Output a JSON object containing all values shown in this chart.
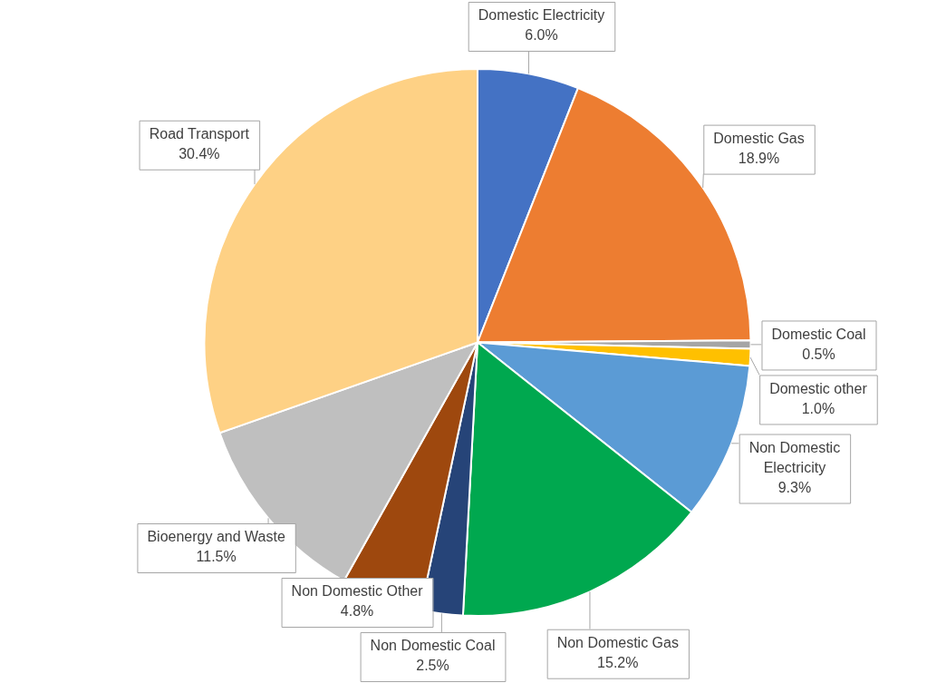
{
  "chart_data": {
    "type": "pie",
    "categories": [
      "Domestic Electricity",
      "Domestic Gas",
      "Domestic Coal",
      "Domestic other",
      "Non Domestic Electricity",
      "Non Domestic Gas",
      "Non Domestic Coal",
      "Non Domestic Other",
      "Bioenergy and Waste",
      "Road Transport"
    ],
    "values": [
      6.0,
      18.9,
      0.5,
      1.0,
      9.3,
      15.2,
      2.5,
      4.8,
      11.5,
      30.4
    ],
    "colors": [
      "#4472c4",
      "#ed7d31",
      "#a5a5a5",
      "#ffc000",
      "#5b9bd5",
      "#00a84f",
      "#264478",
      "#9e480e",
      "#bfbfbf",
      "#fed185"
    ],
    "value_labels": [
      "6.0%",
      "18.9%",
      "0.5%",
      "1.0%",
      "9.3%",
      "15.2%",
      "2.5%",
      "4.8%",
      "11.5%",
      "30.4%"
    ]
  }
}
